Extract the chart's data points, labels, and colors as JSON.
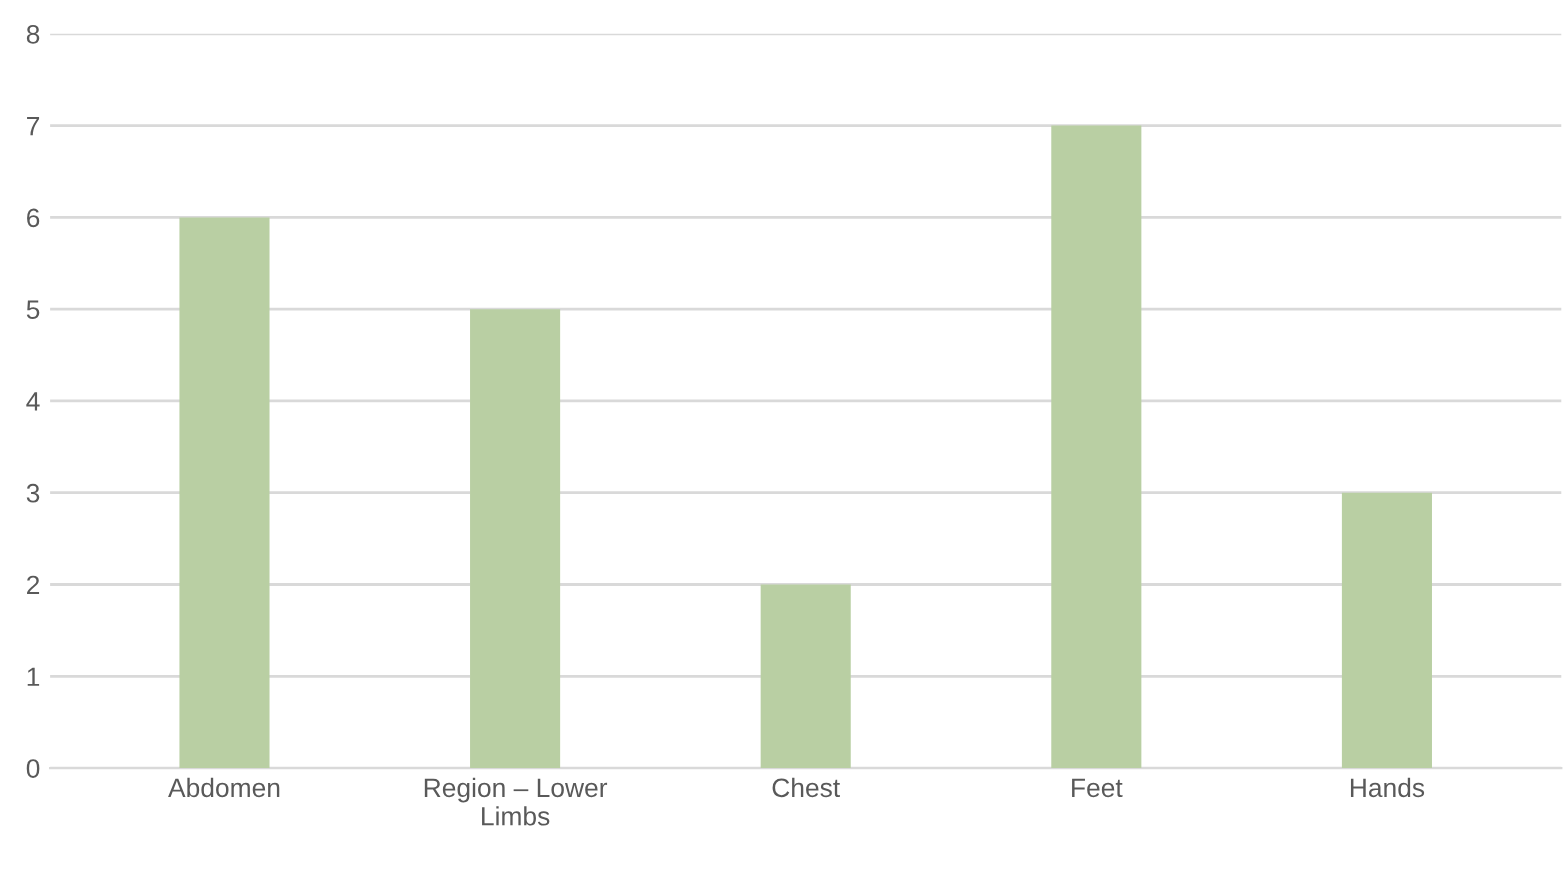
{
  "chart_data": {
    "type": "bar",
    "categories": [
      "Abdomen",
      "Region – Lower\nLimbs",
      "Chest",
      "Feet",
      "Hands"
    ],
    "values": [
      6,
      5,
      2,
      7,
      3
    ],
    "color": "#b9cfa3",
    "ylim": [
      0,
      8
    ],
    "yticks": [
      0,
      1,
      2,
      3,
      4,
      5,
      6,
      7,
      8
    ],
    "grid": "y"
  }
}
